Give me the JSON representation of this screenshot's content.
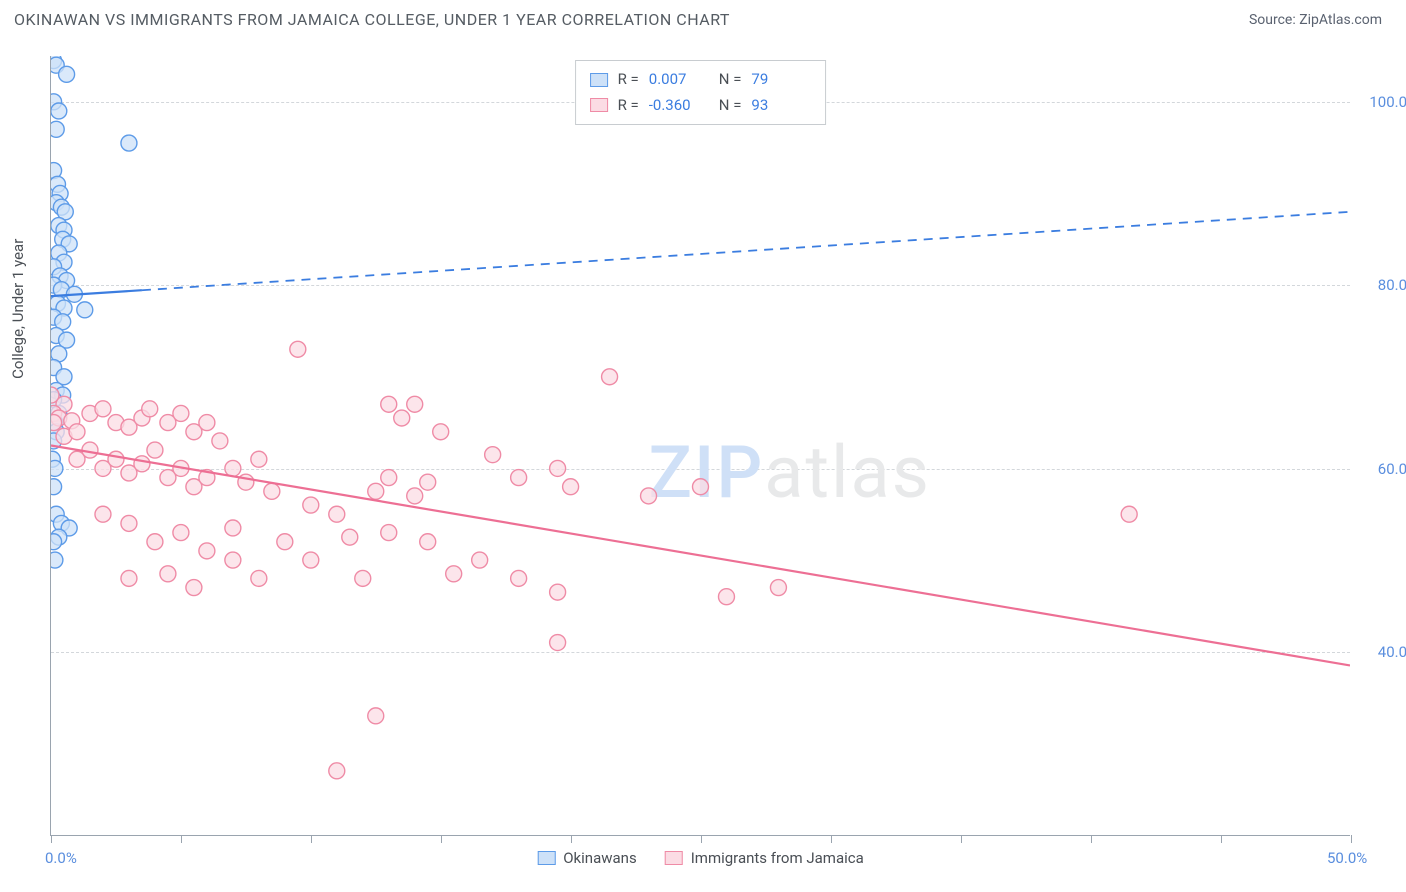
{
  "title": "OKINAWAN VS IMMIGRANTS FROM JAMAICA COLLEGE, UNDER 1 YEAR CORRELATION CHART",
  "source": "Source: ZipAtlas.com",
  "watermark_a": "ZIP",
  "watermark_b": "atlas",
  "y_axis_title": "College, Under 1 year",
  "chart": {
    "type": "scatter-correlation",
    "background_color": "#ffffff",
    "grid_color": "#d3d7db",
    "axis_color": "#9aa4af",
    "text_color": "#4a4f55",
    "accent_text_color": "#5a8ede",
    "xlim": [
      0,
      50
    ],
    "ylim": [
      20,
      105
    ],
    "x_ticks": [
      0,
      5,
      10,
      15,
      20,
      25,
      30,
      35,
      40,
      45,
      50
    ],
    "x_tick_labels": {
      "0": "0.0%",
      "50": "50.0%"
    },
    "y_ticks": [
      40,
      60,
      80,
      100
    ],
    "y_tick_labels": {
      "40": "40.0%",
      "60": "60.0%",
      "80": "80.0%",
      "100": "100.0%"
    },
    "marker_radius": 8,
    "marker_stroke_width": 1.4,
    "trend_line_width": 2.2,
    "series": [
      {
        "name": "Okinawans",
        "fill_color": "#cde1f8",
        "stroke_color": "#5d9be8",
        "line_color": "#3b7de0",
        "R": "0.007",
        "N": "79",
        "trend": {
          "x0": 0,
          "y0": 78.8,
          "x1": 50,
          "y1": 88.0,
          "solid_until_x": 3.5
        },
        "points": [
          [
            0.1,
            104.5
          ],
          [
            0.2,
            104.0
          ],
          [
            0.6,
            103.0
          ],
          [
            0.1,
            100.0
          ],
          [
            0.3,
            99.0
          ],
          [
            0.2,
            97.0
          ],
          [
            3.0,
            95.5
          ],
          [
            0.1,
            92.5
          ],
          [
            0.25,
            91.0
          ],
          [
            0.35,
            90.0
          ],
          [
            0.2,
            89.0
          ],
          [
            0.4,
            88.5
          ],
          [
            0.55,
            88.0
          ],
          [
            0.3,
            86.5
          ],
          [
            0.5,
            86.0
          ],
          [
            0.45,
            85.0
          ],
          [
            0.7,
            84.5
          ],
          [
            0.3,
            83.5
          ],
          [
            0.5,
            82.5
          ],
          [
            0.1,
            82.0
          ],
          [
            0.35,
            81.0
          ],
          [
            0.6,
            80.5
          ],
          [
            0.1,
            80.0
          ],
          [
            0.4,
            79.5
          ],
          [
            0.9,
            79.0
          ],
          [
            0.25,
            78.0
          ],
          [
            0.5,
            77.5
          ],
          [
            1.3,
            77.3
          ],
          [
            0.1,
            76.5
          ],
          [
            0.45,
            76.0
          ],
          [
            0.2,
            74.5
          ],
          [
            0.6,
            74.0
          ],
          [
            0.3,
            72.5
          ],
          [
            0.1,
            71.0
          ],
          [
            0.5,
            70.0
          ],
          [
            0.2,
            68.5
          ],
          [
            0.45,
            68.0
          ],
          [
            0.1,
            67.5
          ],
          [
            0.3,
            66.0
          ],
          [
            0.15,
            65.0
          ],
          [
            0.2,
            64.0
          ],
          [
            0.1,
            63.0
          ],
          [
            0.05,
            61.0
          ],
          [
            0.15,
            60.0
          ],
          [
            0.1,
            58.0
          ],
          [
            0.2,
            55.0
          ],
          [
            0.4,
            54.0
          ],
          [
            0.7,
            53.5
          ],
          [
            0.3,
            52.5
          ],
          [
            0.1,
            52.0
          ],
          [
            0.15,
            50.0
          ]
        ]
      },
      {
        "name": "Immigrants from Jamaica",
        "fill_color": "#fbdce4",
        "stroke_color": "#ef8ba6",
        "line_color": "#ed6f94",
        "R": "-0.360",
        "N": "93",
        "trend": {
          "x0": 0,
          "y0": 62.5,
          "x1": 50,
          "y1": 38.5,
          "solid_until_x": 50
        },
        "points": [
          [
            0.0,
            68.0
          ],
          [
            0.5,
            67.0
          ],
          [
            0.1,
            66.0
          ],
          [
            0.3,
            65.5
          ],
          [
            0.1,
            65.0
          ],
          [
            0.8,
            65.2
          ],
          [
            1.5,
            66.0
          ],
          [
            2.0,
            66.5
          ],
          [
            0.5,
            63.5
          ],
          [
            1.0,
            64.0
          ],
          [
            2.5,
            65.0
          ],
          [
            3.0,
            64.5
          ],
          [
            3.5,
            65.5
          ],
          [
            3.8,
            66.5
          ],
          [
            4.5,
            65.0
          ],
          [
            5.0,
            66.0
          ],
          [
            5.5,
            64.0
          ],
          [
            6.0,
            65.0
          ],
          [
            6.5,
            63.0
          ],
          [
            1.0,
            61.0
          ],
          [
            1.5,
            62.0
          ],
          [
            2.0,
            60.0
          ],
          [
            2.5,
            61.0
          ],
          [
            3.0,
            59.5
          ],
          [
            3.5,
            60.5
          ],
          [
            4.0,
            62.0
          ],
          [
            4.5,
            59.0
          ],
          [
            5.0,
            60.0
          ],
          [
            5.5,
            58.0
          ],
          [
            6.0,
            59.0
          ],
          [
            7.0,
            60.0
          ],
          [
            7.5,
            58.5
          ],
          [
            8.0,
            61.0
          ],
          [
            8.5,
            57.5
          ],
          [
            9.5,
            73.0
          ],
          [
            13.0,
            67.0
          ],
          [
            13.5,
            65.5
          ],
          [
            14.0,
            67.0
          ],
          [
            15.0,
            64.0
          ],
          [
            13.0,
            59.0
          ],
          [
            14.0,
            57.0
          ],
          [
            14.5,
            58.5
          ],
          [
            12.5,
            57.5
          ],
          [
            10.0,
            56.0
          ],
          [
            11.0,
            55.0
          ],
          [
            13.0,
            53.0
          ],
          [
            17.0,
            61.5
          ],
          [
            18.0,
            59.0
          ],
          [
            19.5,
            60.0
          ],
          [
            20.0,
            58.0
          ],
          [
            21.5,
            70.0
          ],
          [
            23.0,
            57.0
          ],
          [
            25.0,
            58.0
          ],
          [
            26.0,
            46.0
          ],
          [
            2.0,
            55.0
          ],
          [
            3.0,
            54.0
          ],
          [
            4.0,
            52.0
          ],
          [
            5.0,
            53.0
          ],
          [
            6.0,
            51.0
          ],
          [
            7.0,
            50.0
          ],
          [
            8.0,
            48.0
          ],
          [
            3.0,
            48.0
          ],
          [
            4.5,
            48.5
          ],
          [
            5.5,
            47.0
          ],
          [
            7.0,
            53.5
          ],
          [
            9.0,
            52.0
          ],
          [
            10.0,
            50.0
          ],
          [
            11.5,
            52.5
          ],
          [
            12.0,
            48.0
          ],
          [
            14.5,
            52.0
          ],
          [
            15.5,
            48.5
          ],
          [
            16.5,
            50.0
          ],
          [
            18.0,
            48.0
          ],
          [
            19.5,
            46.5
          ],
          [
            28.0,
            47.0
          ],
          [
            12.5,
            33.0
          ],
          [
            19.5,
            41.0
          ],
          [
            11.0,
            27.0
          ],
          [
            41.5,
            55.0
          ]
        ]
      }
    ]
  }
}
